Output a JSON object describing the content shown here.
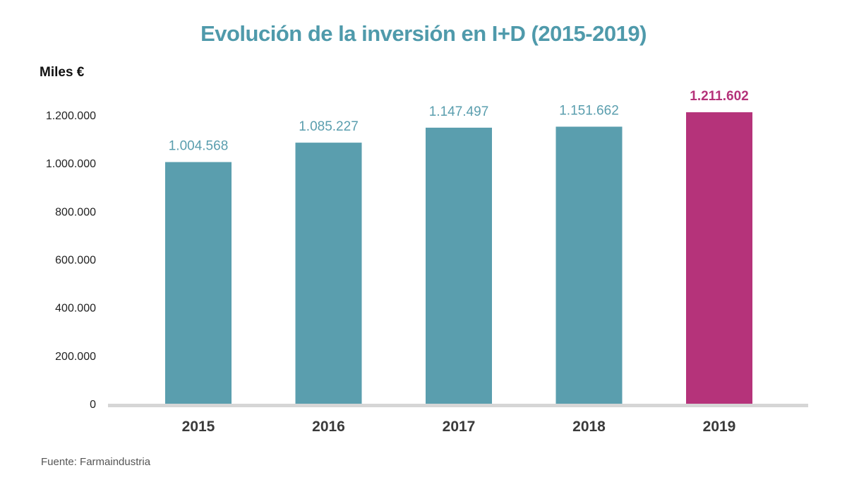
{
  "chart_data": {
    "type": "bar",
    "title": "Evolución de la inversión en I+D (2015-2019)",
    "ylabel": "Miles €",
    "categories": [
      "2015",
      "2016",
      "2017",
      "2018",
      "2019"
    ],
    "values": [
      1004568,
      1085227,
      1147497,
      1151662,
      1211602
    ],
    "data_labels": [
      "1.004.568",
      "1.085.227",
      "1.147.497",
      "1.151.662",
      "1.211.602"
    ],
    "yticks": [
      0,
      200000,
      400000,
      600000,
      800000,
      1000000,
      1200000
    ],
    "ytick_labels": [
      "0",
      "200.000",
      "400.000",
      "600.000",
      "800.000",
      "1.000.000",
      "1.200.000"
    ],
    "ylim": [
      0,
      1200000
    ],
    "grid": false,
    "legend": "none",
    "highlight_index": 4
  },
  "source": "Fuente: Farmaindustria",
  "colors": {
    "title": "#4f9aab",
    "bar": "#5a9eae",
    "highlight": "#b5337a",
    "label": "#5a9eae",
    "highlight_label": "#b5337a",
    "axis": "#d6d6d6"
  }
}
